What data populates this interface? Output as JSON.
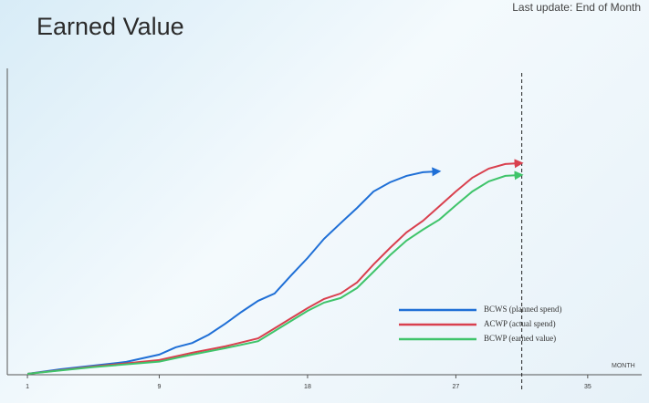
{
  "chart_data": {
    "type": "line",
    "title": "Earned Value",
    "subtitle": "Last update: End of Month",
    "x_label": "MONTH",
    "xlim": [
      0,
      38
    ],
    "xticks": [
      1,
      9,
      18,
      27,
      35
    ],
    "ylim": [
      0,
      100
    ],
    "grid": false,
    "legend": "lower-right",
    "marker_x": 31,
    "series": [
      {
        "name": "BCWS (planned spend)",
        "color": "#1f6fd6",
        "x": [
          1,
          3,
          5,
          7,
          9,
          10,
          11,
          12,
          13,
          14,
          15,
          16,
          17,
          18,
          19,
          20,
          21,
          22,
          23,
          24,
          25,
          26
        ],
        "values": [
          0,
          1.5,
          2.7,
          3.9,
          6.3,
          8.7,
          10.1,
          12.8,
          16.4,
          20.3,
          23.9,
          26.3,
          32.2,
          37.9,
          44.2,
          49.3,
          54.3,
          59.7,
          62.7,
          64.8,
          66.0,
          66.3
        ]
      },
      {
        "name": "ACWP (actual spend)",
        "color": "#d9404e",
        "x": [
          1,
          5,
          9,
          11,
          13,
          15,
          16,
          17,
          18,
          19,
          20,
          21,
          22,
          23,
          24,
          25,
          26,
          27,
          28,
          29,
          30,
          31
        ],
        "values": [
          0,
          2.4,
          4.5,
          6.9,
          9.0,
          11.6,
          14.9,
          18.2,
          21.5,
          24.5,
          26.3,
          29.9,
          35.8,
          41.2,
          46.3,
          50.1,
          54.9,
          59.7,
          64.2,
          67.2,
          68.7,
          69.0
        ]
      },
      {
        "name": "BCWP (earned value)",
        "color": "#3fc46a",
        "x": [
          1,
          5,
          9,
          11,
          13,
          15,
          16,
          17,
          18,
          19,
          20,
          21,
          22,
          23,
          24,
          25,
          26,
          27,
          28,
          29,
          30,
          31
        ],
        "values": [
          0,
          2.2,
          4.0,
          6.3,
          8.4,
          10.7,
          14.0,
          17.3,
          20.6,
          23.3,
          24.8,
          28.1,
          33.4,
          38.8,
          43.6,
          47.2,
          50.5,
          55.2,
          59.7,
          63.0,
          64.8,
          65.1
        ]
      }
    ]
  }
}
